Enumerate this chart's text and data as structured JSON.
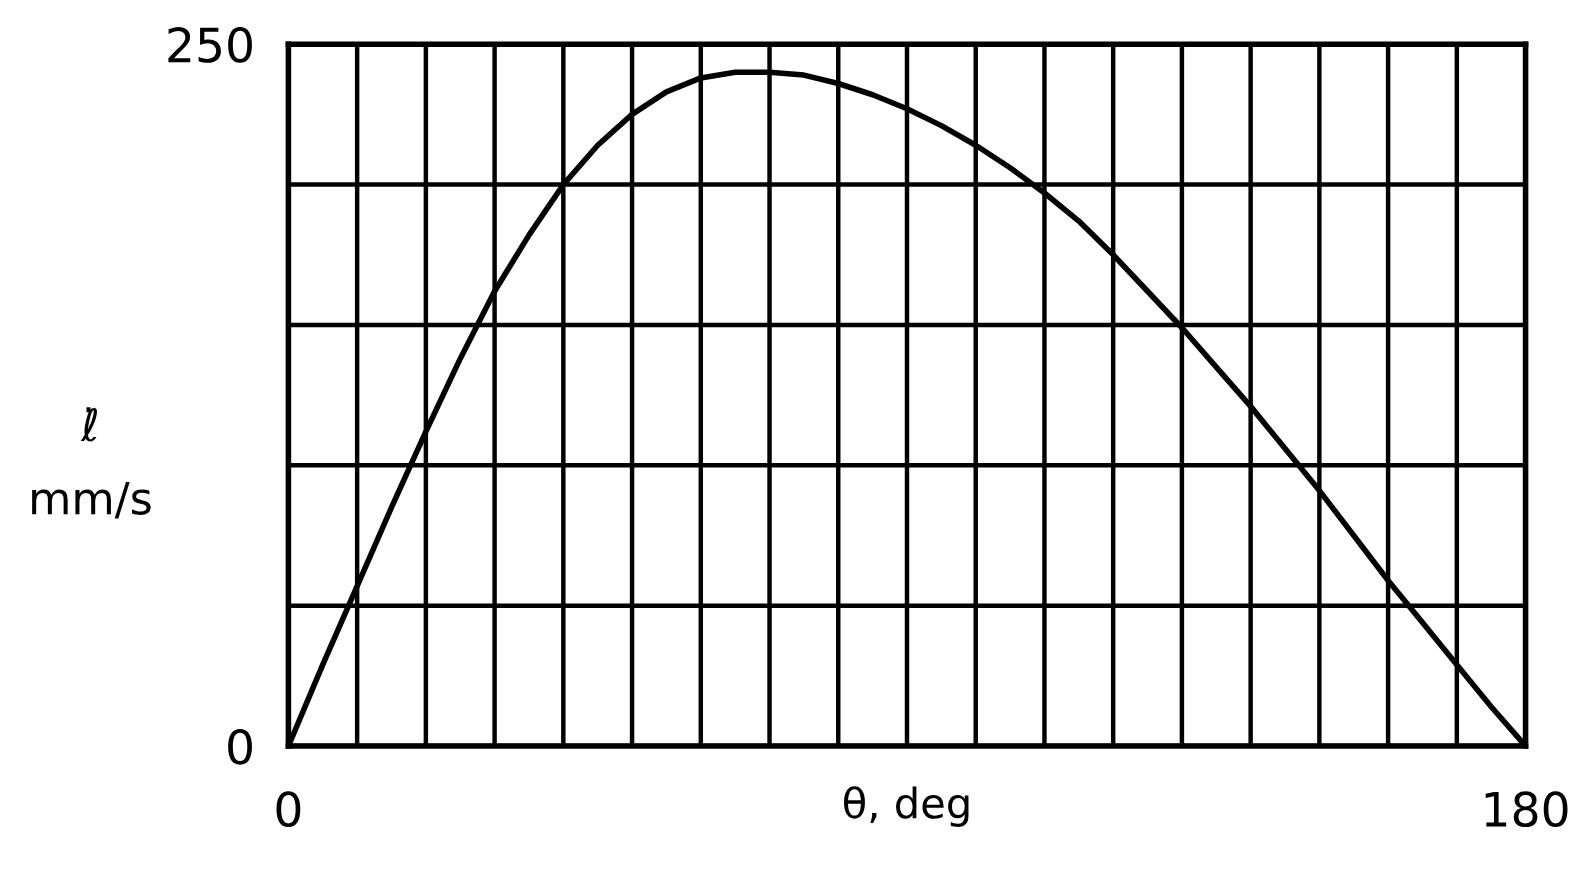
{
  "chart_data": {
    "type": "line",
    "xlabel": "θ, deg",
    "ylabel": "ℓ̇\nmm/s",
    "x": [
      0,
      5,
      10,
      15,
      20,
      25,
      30,
      35,
      40,
      45,
      50,
      55,
      60,
      65,
      70,
      75,
      80,
      85,
      90,
      95,
      100,
      105,
      110,
      115,
      120,
      125,
      130,
      135,
      140,
      145,
      150,
      155,
      160,
      165,
      170,
      175,
      180
    ],
    "values": [
      0,
      29,
      57,
      85,
      112,
      138,
      162,
      182,
      200,
      214,
      225,
      233,
      238,
      240,
      240,
      239,
      236,
      232,
      227,
      221,
      214,
      206,
      197,
      187,
      175,
      162,
      149,
      135,
      121,
      106,
      91,
      75,
      59,
      44,
      29,
      14,
      0
    ],
    "color": "#000000",
    "line_style": "solid",
    "xlim": [
      0,
      180
    ],
    "ylim": [
      0,
      250
    ],
    "xticks": [
      0,
      {
        "value": 10,
        "label": null
      },
      {
        "value": 20,
        "label": null
      },
      {
        "value": 30,
        "label": null
      },
      {
        "value": 40,
        "label": null
      },
      {
        "value": 50,
        "label": null
      },
      {
        "value": 60,
        "label": null
      },
      {
        "value": 70,
        "label": null
      },
      {
        "value": 80,
        "label": null
      },
      {
        "value": 90,
        "label": null
      },
      {
        "value": 100,
        "label": null
      },
      {
        "value": 110,
        "label": null
      },
      {
        "value": 120,
        "label": null
      },
      {
        "value": 130,
        "label": null
      },
      {
        "value": 140,
        "label": null
      },
      {
        "value": 150,
        "label": null
      },
      {
        "value": 160,
        "label": null
      },
      {
        "value": 170,
        "label": null
      },
      180
    ],
    "yticks": [
      0,
      {
        "value": 50,
        "label": null
      },
      {
        "value": 100,
        "label": null
      },
      {
        "value": 150,
        "label": null
      },
      {
        "value": 200,
        "label": null
      },
      250
    ],
    "grid": true
  }
}
